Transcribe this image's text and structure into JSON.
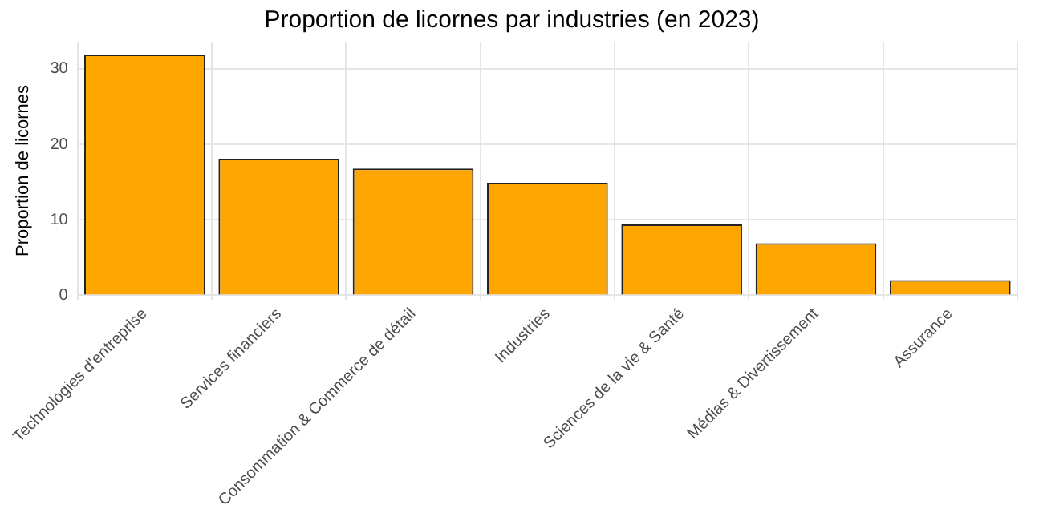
{
  "chart_data": {
    "type": "bar",
    "title": "Proportion de licornes par industries (en 2023)",
    "ylabel": "Proportion de licornes",
    "categories": [
      "Technologies d'entreprise",
      "Services financiers",
      "Consommation & Commerce de détail",
      "Industries",
      "Sciences de la vie & Santé",
      "Médias & Divertissement",
      "Assurance"
    ],
    "values": [
      31.9,
      18.1,
      16.8,
      14.9,
      9.4,
      6.9,
      2.0
    ],
    "color": "#ffa500",
    "ylim": [
      -0.6,
      33.6
    ],
    "yticks": [
      0,
      10,
      20,
      30
    ],
    "grid": true
  }
}
